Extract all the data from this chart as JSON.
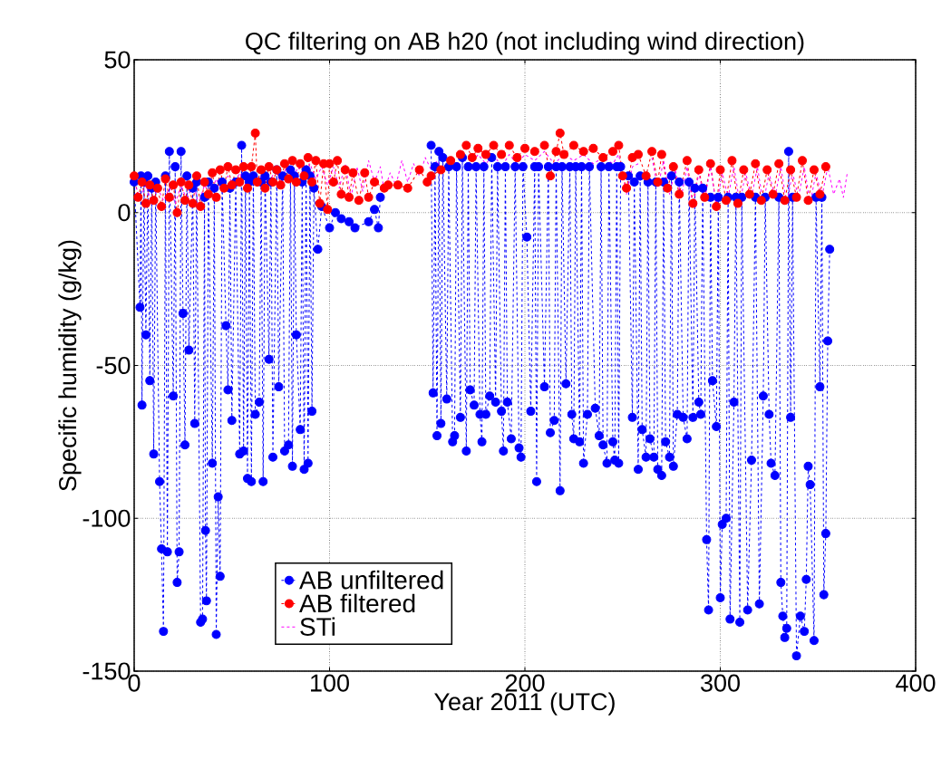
{
  "chart_data": {
    "type": "line",
    "title": "QC filtering on AB h20 (not including wind direction)",
    "xlabel": "Year 2011 (UTC)",
    "ylabel": "Specific humidity (g/kg)",
    "xlim": [
      0,
      400
    ],
    "ylim": [
      -150,
      50
    ],
    "xticks": [
      0,
      100,
      200,
      300,
      400
    ],
    "yticks": [
      -150,
      -100,
      -50,
      0,
      50
    ],
    "grid": true,
    "legend": "bottom left",
    "line_style": "dashed",
    "series": [
      {
        "name": "AB unfiltered",
        "color": "#0000ff",
        "marker": "circle",
        "x": [
          0,
          3,
          3.5,
          4,
          5,
          6,
          7,
          8,
          9,
          10,
          11,
          13,
          14,
          15,
          16,
          17,
          18,
          20,
          21,
          22,
          23,
          24,
          25,
          26,
          27,
          28,
          30,
          31,
          32,
          34,
          35,
          36,
          36.5,
          37,
          38,
          40,
          41,
          42,
          43,
          44,
          45,
          47,
          48,
          49,
          50,
          52,
          54,
          55,
          56,
          57,
          58,
          59,
          60,
          61,
          62,
          64,
          65,
          66,
          67,
          69,
          70,
          71,
          73,
          74,
          76,
          77,
          79,
          80,
          81,
          82,
          83,
          85,
          86,
          87,
          88,
          89,
          90,
          91,
          92,
          94,
          96,
          100,
          103,
          106,
          110,
          113,
          120,
          123,
          125,
          126,
          140,
          152,
          153,
          154,
          155,
          156,
          157,
          158,
          160,
          161,
          163,
          164,
          165,
          167,
          168,
          170,
          171,
          172,
          174,
          175,
          177,
          178,
          179,
          180,
          182,
          183,
          185,
          186,
          188,
          189,
          190,
          191,
          193,
          195,
          197,
          198,
          199,
          201,
          203,
          205,
          206,
          207,
          210,
          212,
          213,
          215,
          216,
          218,
          219,
          221,
          223,
          224,
          225,
          226,
          228,
          229,
          230,
          232,
          233,
          236,
          238,
          239,
          240,
          242,
          243,
          245,
          246,
          247,
          248,
          249,
          251,
          253,
          255,
          256,
          258,
          259,
          260,
          262,
          263,
          264,
          266,
          267,
          268,
          270,
          271,
          272,
          274,
          275,
          276,
          278,
          279,
          281,
          283,
          284,
          286,
          287,
          289,
          290,
          291,
          293,
          294,
          295,
          296,
          298,
          299,
          300,
          301,
          303,
          304,
          305,
          307,
          308,
          310,
          311,
          314,
          316,
          318,
          320,
          322,
          323,
          325,
          326,
          328,
          330,
          331,
          332,
          333,
          334,
          335,
          336,
          337,
          339,
          341,
          343,
          344,
          345,
          346,
          348,
          349,
          351,
          352,
          353,
          354,
          355,
          356
        ],
        "values": [
          10,
          -31,
          12,
          -63,
          10,
          -40,
          12,
          -55,
          8,
          -79,
          10,
          -88,
          -110,
          -137,
          12,
          -111,
          20,
          -60,
          15,
          -121,
          -111,
          20,
          -33,
          -76,
          12,
          -45,
          8,
          -69,
          10,
          -134,
          -133,
          5,
          -104,
          -127,
          10,
          -82,
          8,
          -138,
          -93,
          -119,
          10,
          -37,
          -58,
          8,
          -68,
          10,
          -79,
          22,
          -78,
          12,
          -87,
          10,
          -88,
          12,
          -66,
          -62,
          10,
          -88,
          12,
          -48,
          10,
          -80,
          14,
          -57,
          12,
          -78,
          -76,
          14,
          -83,
          12,
          -40,
          -71,
          10,
          -84,
          14,
          -82,
          12,
          -65,
          8,
          -12,
          2,
          -5,
          0,
          -2,
          -3,
          -5,
          -3,
          1,
          -5,
          5,
          null,
          22,
          -59,
          15,
          -73,
          20,
          -69,
          18,
          -61,
          15,
          -75,
          -73,
          15,
          -67,
          18,
          -78,
          15,
          -58,
          -63,
          15,
          -66,
          -75,
          15,
          -66,
          -60,
          18,
          -62,
          15,
          -65,
          -78,
          15,
          -62,
          -74,
          15,
          -77,
          -80,
          15,
          -8,
          -65,
          15,
          -88,
          15,
          -57,
          15,
          -72,
          -68,
          15,
          -91,
          15,
          -56,
          15,
          -66,
          -74,
          15,
          -75,
          15,
          -82,
          -66,
          15,
          -64,
          -73,
          15,
          -76,
          -82,
          15,
          -75,
          -81,
          15,
          -82,
          15,
          null,
          12,
          -67,
          10,
          -84,
          12,
          -71,
          -80,
          10,
          -74,
          -80,
          10,
          -84,
          -86,
          10,
          -75,
          -80,
          12,
          -83,
          -66,
          10,
          -67,
          -74,
          10,
          -67,
          8,
          -62,
          -66,
          8,
          -107,
          -130,
          5,
          -55,
          -70,
          5,
          -126,
          -102,
          -100,
          5,
          -133,
          -62,
          5,
          -134,
          5,
          -130,
          -81,
          5,
          -128,
          -60,
          5,
          -66,
          -82,
          -86,
          5,
          -121,
          -132,
          -139,
          -136,
          20,
          -67,
          5,
          -145,
          -132,
          -137,
          -120,
          -83,
          -89,
          -140,
          5,
          -57,
          5,
          -125,
          -105,
          -42,
          -12
        ]
      },
      {
        "name": "AB filtered",
        "color": "#ff0000",
        "marker": "circle",
        "x": [
          0,
          2,
          4,
          6,
          8,
          10,
          12,
          14,
          16,
          18,
          20,
          22,
          24,
          26,
          28,
          30,
          32,
          34,
          36,
          38,
          40,
          42,
          44,
          46,
          48,
          50,
          52,
          54,
          56,
          58,
          60,
          62,
          63,
          65,
          67,
          69,
          71,
          73,
          75,
          77,
          79,
          81,
          83,
          85,
          87,
          89,
          91,
          93,
          95,
          97,
          99,
          100,
          102,
          104,
          106,
          108,
          110,
          112,
          115,
          118,
          120,
          123,
          128,
          130,
          135,
          140,
          146,
          150,
          152,
          157,
          162,
          167,
          170,
          173,
          176,
          180,
          184,
          188,
          192,
          196,
          200,
          205,
          210,
          213,
          216,
          218,
          220,
          225,
          230,
          235,
          240,
          245,
          248,
          250,
          252,
          255,
          258,
          262,
          265,
          268,
          270,
          273,
          276,
          279,
          283,
          286,
          289,
          292,
          295,
          298,
          300,
          303,
          306,
          309,
          312,
          315,
          318,
          321,
          324,
          327,
          330,
          333,
          336,
          339,
          342,
          345,
          348,
          351,
          354
        ],
        "values": [
          12,
          5,
          10,
          3,
          9,
          4,
          8,
          2,
          11,
          5,
          9,
          0,
          10,
          4,
          9,
          3,
          12,
          2,
          10,
          6,
          13,
          5,
          14,
          8,
          15,
          9,
          14,
          10,
          15,
          8,
          15,
          26,
          10,
          14,
          8,
          15,
          10,
          14,
          9,
          16,
          11,
          17,
          10,
          16,
          12,
          18,
          10,
          17,
          3,
          16,
          1,
          16,
          10,
          17,
          6,
          14,
          5,
          13,
          4,
          13,
          5,
          10,
          8,
          9,
          9,
          8,
          14,
          10,
          12,
          14,
          17,
          19,
          22,
          18,
          21,
          19,
          22,
          19,
          22,
          18,
          21,
          20,
          22,
          12,
          20,
          26,
          19,
          22,
          20,
          21,
          18,
          20,
          22,
          12,
          8,
          18,
          19,
          12,
          20,
          10,
          19,
          8,
          15,
          6,
          17,
          3,
          14,
          5,
          16,
          2,
          14,
          4,
          17,
          3,
          14,
          6,
          16,
          4,
          14,
          6,
          16,
          4,
          14,
          5,
          17,
          4,
          14,
          6,
          15
        ]
      },
      {
        "name": "STi",
        "color": "#ff00ff",
        "marker": "none",
        "x": [
          0,
          3,
          6,
          9,
          12,
          15,
          18,
          21,
          24,
          27,
          30,
          33,
          36,
          39,
          42,
          45,
          48,
          51,
          54,
          57,
          60,
          63,
          66,
          69,
          72,
          75,
          78,
          81,
          84,
          87,
          90,
          93,
          96,
          99,
          102,
          105,
          108,
          111,
          114,
          117,
          120,
          123,
          126,
          128,
          131,
          134,
          137,
          140,
          143,
          146,
          149,
          152,
          155,
          158,
          161,
          165,
          168,
          172,
          176,
          180,
          184,
          188,
          192,
          196,
          200,
          205,
          210,
          215,
          220,
          225,
          230,
          235,
          240,
          245,
          248,
          252,
          255,
          258,
          262,
          265,
          268,
          271,
          274,
          277,
          280,
          283,
          286,
          289,
          292,
          295,
          298,
          301,
          304,
          307,
          310,
          313,
          316,
          319,
          322,
          325,
          328,
          331,
          334,
          337,
          340,
          343,
          346,
          349,
          352,
          355,
          358,
          361,
          363,
          365
        ],
        "values": [
          10,
          5,
          9,
          3,
          8,
          4,
          8,
          3,
          9,
          4,
          10,
          3,
          9,
          6,
          11,
          7,
          12,
          9,
          13,
          9,
          null,
          10,
          13,
          9,
          14,
          10,
          15,
          11,
          15,
          12,
          16,
          11,
          15,
          9,
          15,
          8,
          16,
          5,
          15,
          7,
          17,
          10,
          15,
          7,
          13,
          9,
          17,
          10,
          16,
          12,
          18,
          14,
          17,
          13,
          16,
          15,
          18,
          15,
          19,
          16,
          19,
          15,
          19,
          16,
          19,
          17,
          20,
          16,
          19,
          17,
          19,
          16,
          18,
          16,
          19,
          6,
          15,
          16,
          null,
          18,
          8,
          17,
          6,
          14,
          5,
          15,
          2,
          13,
          4,
          15,
          2,
          13,
          5,
          15,
          3,
          13,
          5,
          15,
          3,
          13,
          5,
          15,
          3,
          13,
          5,
          15,
          3,
          13,
          5,
          15,
          6,
          11,
          5,
          13
        ]
      }
    ]
  }
}
